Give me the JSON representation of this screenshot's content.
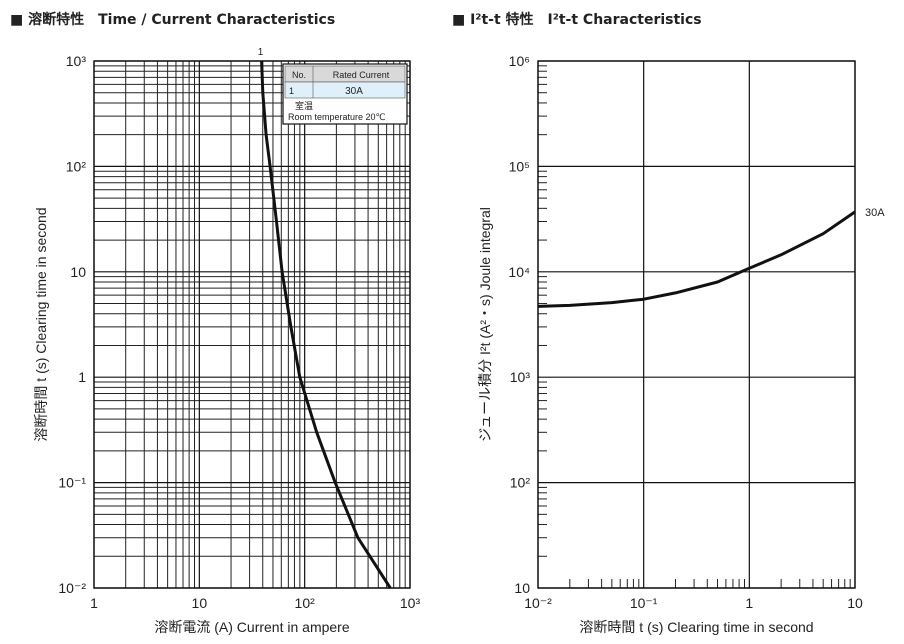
{
  "titles": {
    "left": "■ 溶断特性　Time / Current Characteristics",
    "right": "■ I²t-t 特性　I²t-t Characteristics"
  },
  "chart_data": [
    {
      "type": "line",
      "title": "溶断特性 Time / Current Characteristics",
      "xlabel": "溶断電流 (A)  Current in ampere",
      "ylabel": "溶断時間 t (s)  Clearing time in second",
      "xscale": "log",
      "yscale": "log",
      "xlim": [
        1,
        1000
      ],
      "ylim": [
        0.01,
        1000
      ],
      "xticks": [
        {
          "v": 1,
          "label": "1"
        },
        {
          "v": 10,
          "label": "10"
        },
        {
          "v": 100,
          "label": "10²"
        },
        {
          "v": 1000,
          "label": "10³"
        }
      ],
      "yticks": [
        {
          "v": 0.01,
          "label": "10⁻²"
        },
        {
          "v": 0.1,
          "label": "10⁻¹"
        },
        {
          "v": 1,
          "label": "1"
        },
        {
          "v": 10,
          "label": "10"
        },
        {
          "v": 100,
          "label": "10²"
        },
        {
          "v": 1000,
          "label": "10³"
        }
      ],
      "grid": "major+minor",
      "series": [
        {
          "name": "1",
          "label": "1",
          "x": [
            39,
            40,
            43,
            47,
            54,
            61,
            74,
            90,
            130,
            195,
            320,
            650
          ],
          "y": [
            1000,
            500,
            200,
            100,
            30,
            10,
            3,
            1,
            0.3,
            0.1,
            0.03,
            0.01
          ]
        }
      ],
      "legend": {
        "placement": "top-right",
        "headers": [
          "No.",
          "Rated Current"
        ],
        "rows": [
          [
            "1",
            "30A"
          ]
        ],
        "note_jp": "室温",
        "note_en": "Room temperature 20℃"
      }
    },
    {
      "type": "line",
      "title": "I²t-t Characteristics",
      "xlabel": "溶断時間 t (s)  Clearing time in second",
      "ylabel": "ジュール積分 I²t (A²・s)  Joule integral",
      "xscale": "log",
      "yscale": "log",
      "xlim": [
        0.01,
        10
      ],
      "ylim": [
        10,
        1000000
      ],
      "xticks": [
        {
          "v": 0.01,
          "label": "10⁻²"
        },
        {
          "v": 0.1,
          "label": "10⁻¹"
        },
        {
          "v": 1,
          "label": "1"
        },
        {
          "v": 10,
          "label": "10"
        }
      ],
      "yticks": [
        {
          "v": 10,
          "label": "10"
        },
        {
          "v": 100,
          "label": "10²"
        },
        {
          "v": 1000,
          "label": "10³"
        },
        {
          "v": 10000,
          "label": "10⁴"
        },
        {
          "v": 100000,
          "label": "10⁵"
        },
        {
          "v": 1000000,
          "label": "10⁶"
        }
      ],
      "grid": "major",
      "series": [
        {
          "name": "30A",
          "label": "30A",
          "x": [
            0.01,
            0.02,
            0.05,
            0.1,
            0.2,
            0.5,
            1,
            2,
            5,
            10
          ],
          "y": [
            4700,
            4800,
            5100,
            5500,
            6300,
            8000,
            10800,
            14500,
            23000,
            37000
          ]
        }
      ]
    }
  ]
}
